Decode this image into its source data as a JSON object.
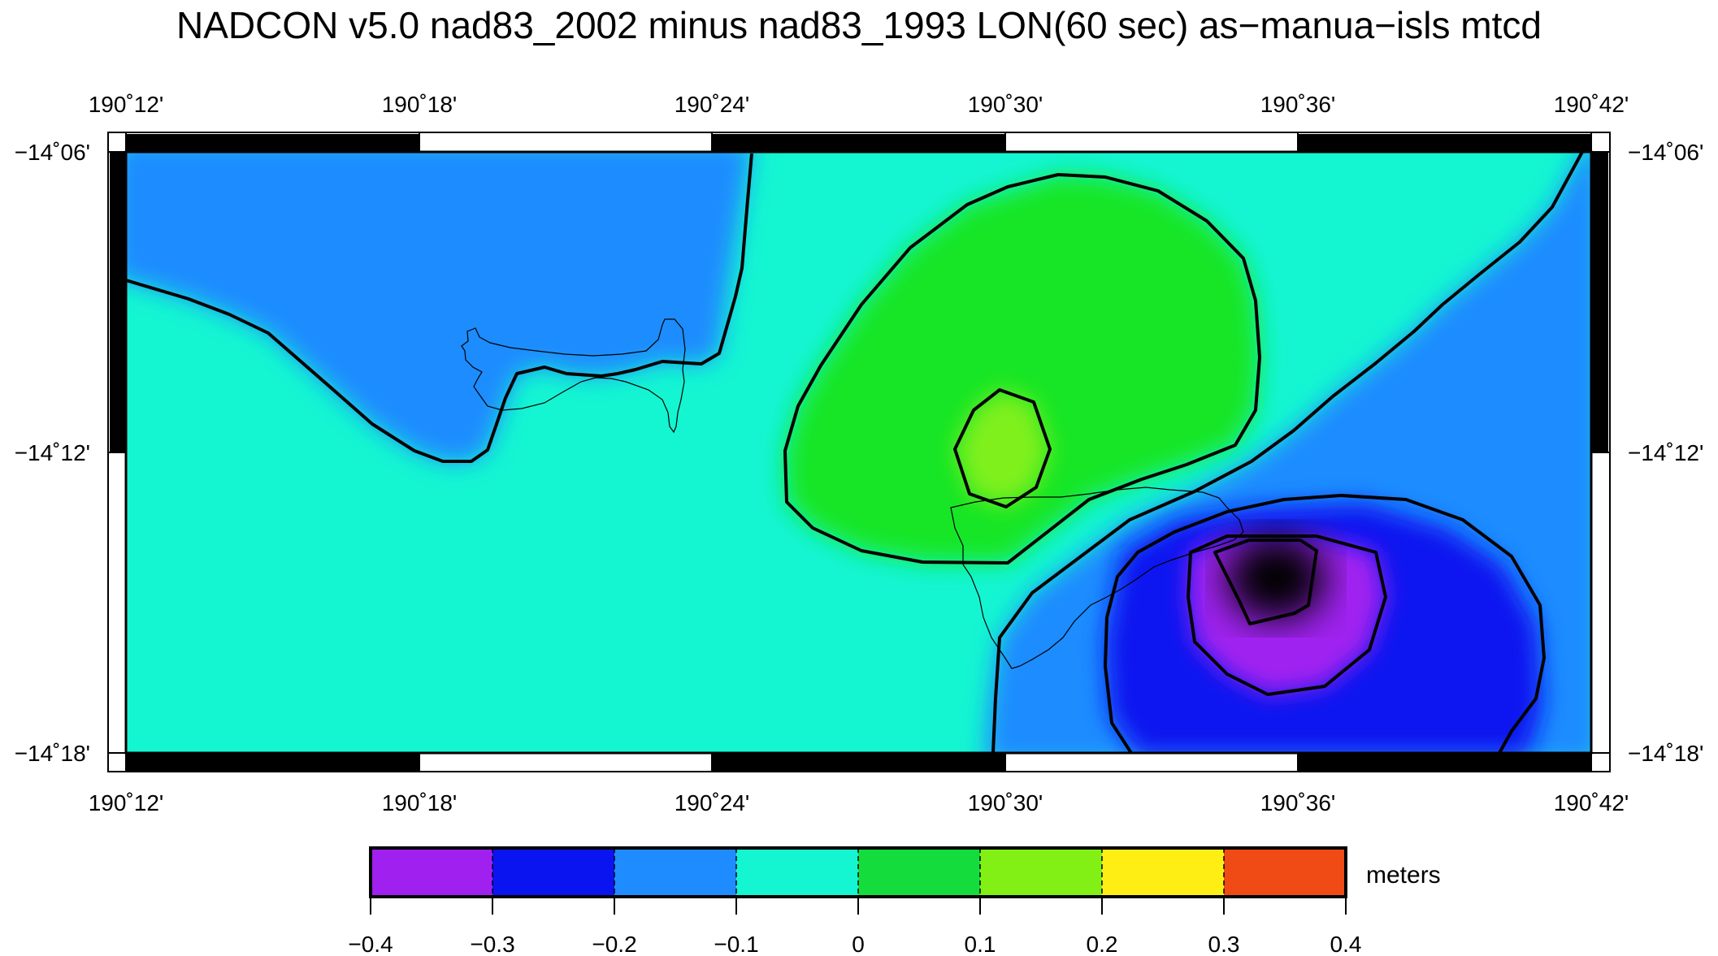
{
  "title": "NADCON v5.0 nad83_2002 minus nad83_1993 LON(60 sec) as−manua−isls mtcd",
  "map": {
    "x_ticks": [
      "190˚12'",
      "190˚18'",
      "190˚24'",
      "190˚30'",
      "190˚36'",
      "190˚42'"
    ],
    "y_ticks": [
      "−14˚06'",
      "−14˚12'",
      "−14˚18'"
    ]
  },
  "colorbar": {
    "units": "meters",
    "tick_labels": [
      "−0.4",
      "−0.3",
      "−0.2",
      "−0.1",
      "0",
      "0.1",
      "0.2",
      "0.3",
      "0.4"
    ],
    "colors": [
      "#a020f0",
      "#0a14f0",
      "#1e8cff",
      "#14f5d2",
      "#14dc3c",
      "#82f014",
      "#ffee14",
      "#f04b14"
    ]
  },
  "colors": {
    "background_field": "#14f5d2",
    "neg_field": "#1e8cff",
    "pos_field": "#14e628",
    "contour": "#000000",
    "coastline": "#000000"
  }
}
